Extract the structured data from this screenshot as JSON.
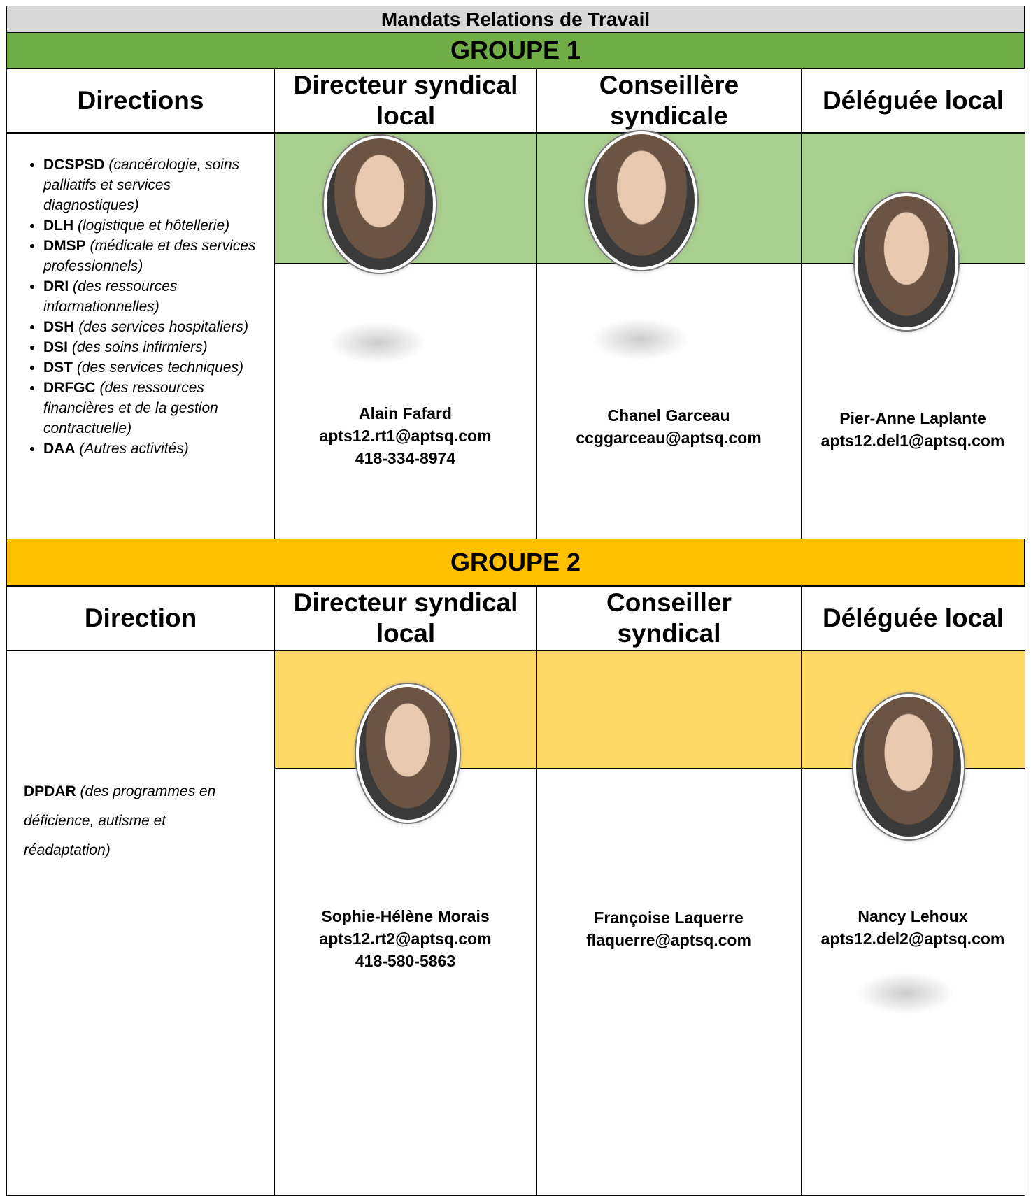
{
  "title": "Mandats Relations de Travail",
  "groups": [
    {
      "label": "GROUPE 1",
      "headers": [
        "Directions",
        "Directeur syndical local",
        "Conseillère syndicale",
        "Déléguée local"
      ],
      "directions": [
        {
          "code": "DCSPSD",
          "desc": "(cancérologie, soins palliatifs et services diagnostiques)"
        },
        {
          "code": "DLH",
          "desc": "(logistique et hôtellerie)"
        },
        {
          "code": "DMSP",
          "desc": "(médicale et des services professionnels)"
        },
        {
          "code": "DRI",
          "desc": "(des ressources informationnelles)"
        },
        {
          "code": "DSH",
          "desc": "(des services hospitaliers)"
        },
        {
          "code": "DSI",
          "desc": "(des soins infirmiers)"
        },
        {
          "code": "DST",
          "desc": "(des services techniques)"
        },
        {
          "code": "DRFGC",
          "desc": "(des ressources financières et de la gestion contractuelle)"
        },
        {
          "code": "DAA",
          "desc": "(Autres activités)"
        }
      ],
      "people": [
        {
          "name": "Alain Fafard",
          "email": "apts12.rt1@aptsq.com",
          "phone": "418-334-8974"
        },
        {
          "name": "Chanel Garceau",
          "email": "ccggarceau@aptsq.com"
        },
        {
          "name": "Pier-Anne Laplante",
          "email": "apts12.del1@aptsq.com"
        }
      ]
    },
    {
      "label": "GROUPE 2",
      "headers": [
        "Direction",
        "Directeur syndical local",
        "Conseiller syndical",
        "Déléguée local"
      ],
      "directions": [
        {
          "code": "DPDAR",
          "desc": "(des programmes en déficience, autisme et réadaptation)"
        }
      ],
      "people": [
        {
          "name": "Sophie-Hélène Morais",
          "email": "apts12.rt2@aptsq.com",
          "phone": "418-580-5863"
        },
        {
          "name": "Françoise Laquerre",
          "email": "flaquerre@aptsq.com"
        },
        {
          "name": "Nancy Lehoux",
          "email": "apts12.del2@aptsq.com"
        }
      ]
    }
  ]
}
